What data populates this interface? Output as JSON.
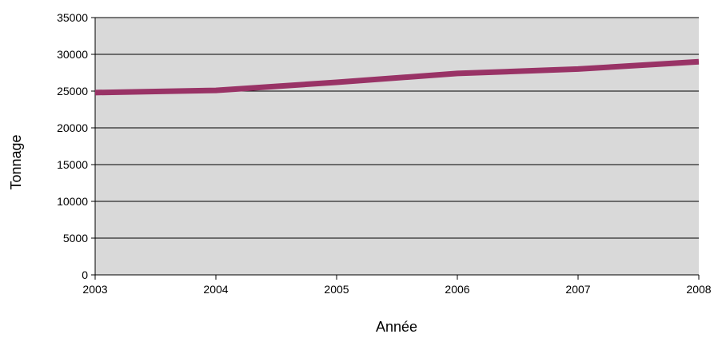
{
  "chart_data": {
    "type": "line",
    "title": "",
    "xlabel": "Année",
    "ylabel": "Tonnage",
    "x": [
      2003,
      2004,
      2005,
      2006,
      2007,
      2008
    ],
    "series": [
      {
        "values": [
          24800,
          25100,
          26200,
          27400,
          28000,
          29000
        ]
      }
    ],
    "ylim": [
      0,
      35000
    ],
    "xlim": [
      2003,
      2008
    ],
    "yticks": [
      "0",
      "5000",
      "10000",
      "15000",
      "20000",
      "25000",
      "30000",
      "35000"
    ],
    "xticks": [
      "2003",
      "2004",
      "2005",
      "2006",
      "2007",
      "2008"
    ],
    "grid": "horizontal",
    "legend": "none",
    "colors": {
      "plot_background": "#d9d9d9",
      "line": "#993366",
      "gridline": "#000000"
    }
  }
}
